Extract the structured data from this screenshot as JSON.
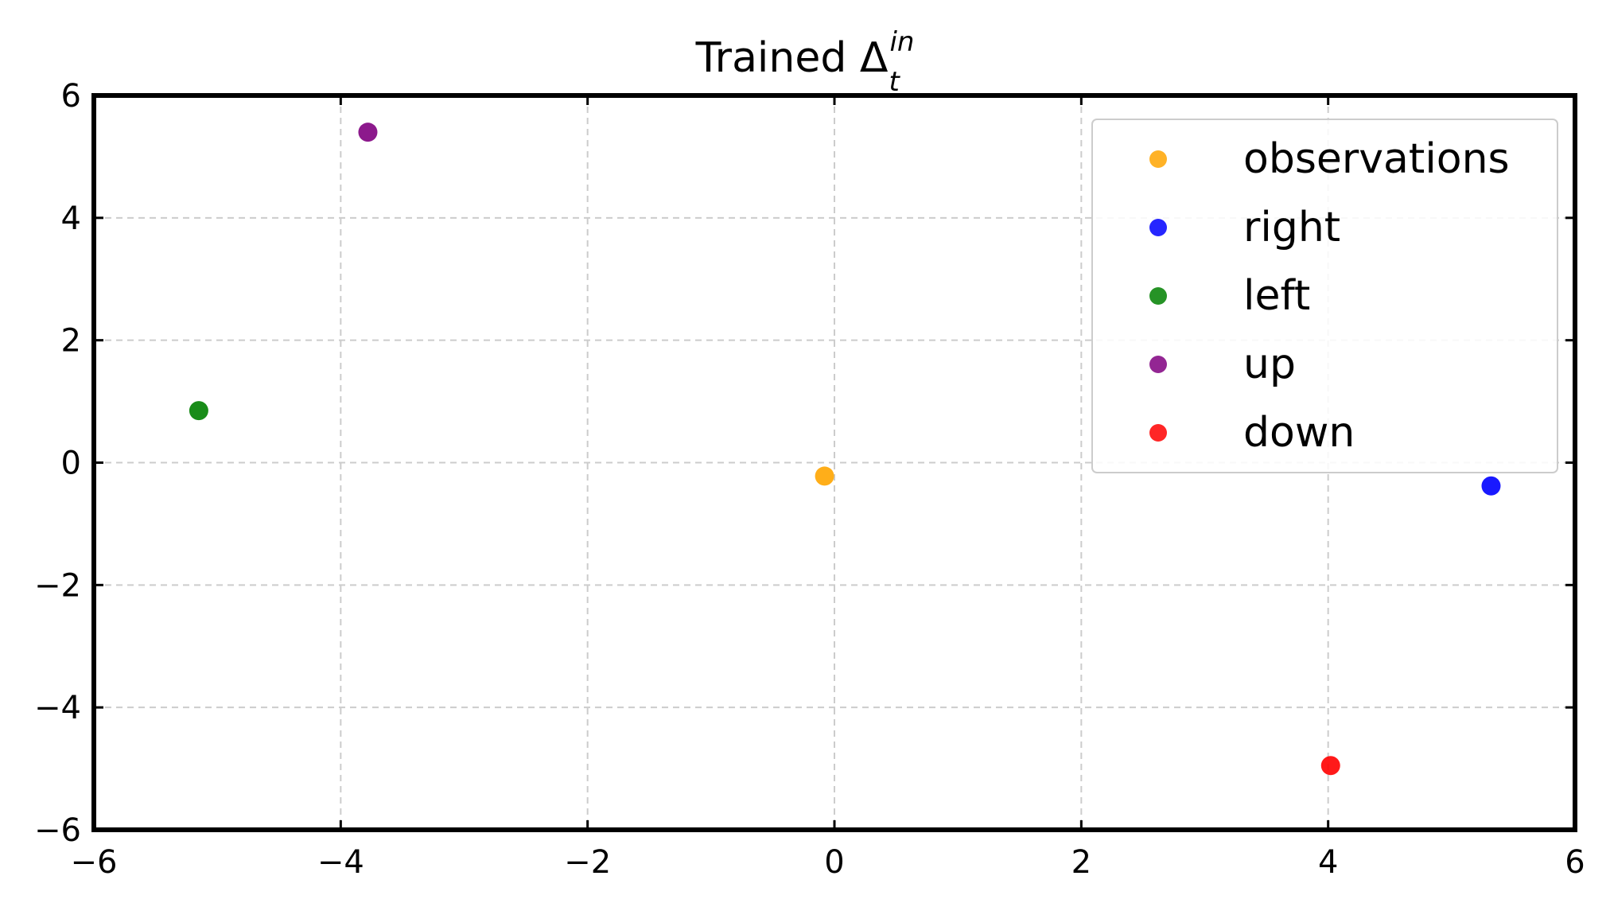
{
  "chart_data": {
    "type": "scatter",
    "title": "Trained Δ",
    "title_superscript": "in",
    "title_subscript": "t",
    "xlabel": "",
    "ylabel": "",
    "xlim": [
      -6,
      6
    ],
    "ylim": [
      -6,
      6
    ],
    "xticks": [
      -6,
      -4,
      -2,
      0,
      2,
      4,
      6
    ],
    "yticks": [
      -6,
      -4,
      -2,
      0,
      2,
      4,
      6
    ],
    "xtick_labels": [
      "−6",
      "−4",
      "−2",
      "0",
      "2",
      "4",
      "6"
    ],
    "ytick_labels": [
      "−6",
      "−4",
      "−2",
      "0",
      "2",
      "4",
      "6"
    ],
    "grid": true,
    "legend_position": "top-right",
    "series": [
      {
        "name": "observations",
        "color": "#ffa500",
        "points": [
          {
            "x": -0.08,
            "y": -0.22
          }
        ]
      },
      {
        "name": "right",
        "color": "#0000ff",
        "points": [
          {
            "x": 5.32,
            "y": -0.38
          }
        ]
      },
      {
        "name": "left",
        "color": "#008000",
        "points": [
          {
            "x": -5.15,
            "y": 0.85
          }
        ]
      },
      {
        "name": "up",
        "color": "#800080",
        "points": [
          {
            "x": -3.78,
            "y": 5.4
          }
        ]
      },
      {
        "name": "down",
        "color": "#ff0000",
        "points": [
          {
            "x": 4.02,
            "y": -4.95
          }
        ]
      }
    ]
  }
}
